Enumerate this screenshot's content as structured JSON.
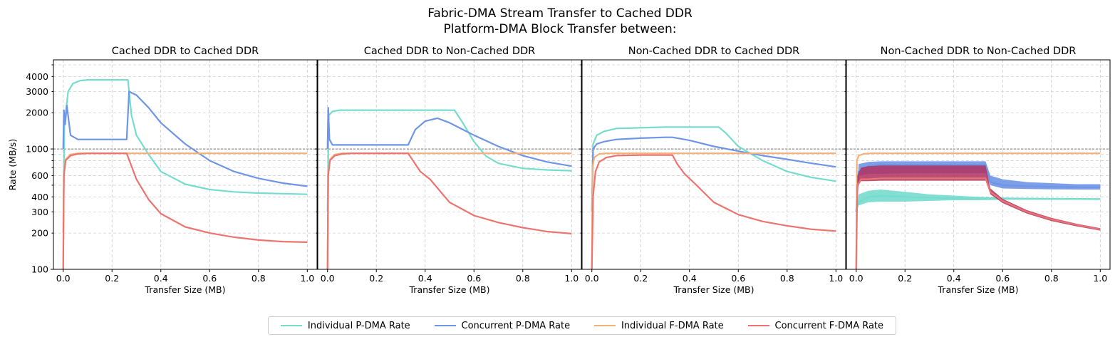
{
  "figure": {
    "title_line1": "Fabric-DMA Stream Transfer to Cached DDR",
    "title_line2": "Platform-DMA Block Transfer between:"
  },
  "legend": [
    {
      "label": "Individual P-DMA Rate",
      "color": "#76dccd"
    },
    {
      "label": "Concurrent P-DMA Rate",
      "color": "#6f95e6"
    },
    {
      "label": "Individual F-DMA Rate",
      "color": "#f5b07a"
    },
    {
      "label": "Concurrent F-DMA Rate",
      "color": "#ec7470"
    }
  ],
  "chart_data": [
    {
      "type": "line",
      "title": "Cached DDR to Cached DDR",
      "xlabel": "Transfer Size (MB)",
      "ylabel": "Rate (MB/s)",
      "yscale": "log",
      "xlim": [
        -0.04,
        1.04
      ],
      "ylim": [
        100,
        5500
      ],
      "xticks": [
        "0.0",
        "0.2",
        "0.4",
        "0.6",
        "0.8",
        "1.0"
      ],
      "yticks": [
        "100",
        "200",
        "300",
        "400",
        "600",
        "1000",
        "2000",
        "3000",
        "4000"
      ],
      "hline": 1000,
      "grid": true,
      "series": [
        {
          "name": "Individual P-DMA Rate",
          "x": [
            0.0,
            0.005,
            0.02,
            0.04,
            0.07,
            0.1,
            0.2,
            0.265,
            0.28,
            0.3,
            0.35,
            0.4,
            0.5,
            0.6,
            0.7,
            0.8,
            0.9,
            1.0
          ],
          "y": [
            200,
            1600,
            3000,
            3500,
            3700,
            3750,
            3750,
            3750,
            1900,
            1300,
            900,
            650,
            510,
            460,
            440,
            430,
            425,
            420
          ]
        },
        {
          "name": "Concurrent P-DMA Rate",
          "x": [
            0.0,
            0.003,
            0.008,
            0.015,
            0.03,
            0.06,
            0.1,
            0.2,
            0.26,
            0.27,
            0.3,
            0.35,
            0.4,
            0.5,
            0.6,
            0.7,
            0.8,
            0.9,
            1.0
          ],
          "y": [
            1000,
            2100,
            1600,
            2300,
            1300,
            1200,
            1200,
            1200,
            1200,
            3000,
            2800,
            2200,
            1650,
            1100,
            800,
            650,
            570,
            520,
            490
          ]
        },
        {
          "name": "Individual F-DMA Rate",
          "x": [
            0.0,
            0.003,
            0.01,
            0.03,
            0.06,
            0.1,
            0.5,
            1.0
          ],
          "y": [
            100,
            620,
            820,
            900,
            920,
            920,
            920,
            920
          ]
        },
        {
          "name": "Concurrent F-DMA Rate",
          "x": [
            0.0,
            0.003,
            0.01,
            0.03,
            0.06,
            0.1,
            0.2,
            0.26,
            0.3,
            0.35,
            0.4,
            0.5,
            0.6,
            0.7,
            0.8,
            0.9,
            1.0
          ],
          "y": [
            100,
            600,
            800,
            880,
            910,
            920,
            920,
            920,
            560,
            380,
            290,
            225,
            200,
            185,
            175,
            170,
            168
          ]
        }
      ]
    },
    {
      "type": "line",
      "title": "Cached DDR to Non-Cached DDR",
      "xlabel": "Transfer Size (MB)",
      "ylabel": "",
      "yscale": "log",
      "xlim": [
        -0.04,
        1.04
      ],
      "ylim": [
        100,
        5500
      ],
      "xticks": [
        "0.0",
        "0.2",
        "0.4",
        "0.6",
        "0.8",
        "1.0"
      ],
      "yticks": [],
      "hline": 1000,
      "grid": true,
      "series": [
        {
          "name": "Individual P-DMA Rate",
          "x": [
            0.0,
            0.005,
            0.02,
            0.05,
            0.1,
            0.3,
            0.52,
            0.55,
            0.6,
            0.65,
            0.7,
            0.8,
            0.9,
            1.0
          ],
          "y": [
            300,
            1900,
            2050,
            2100,
            2100,
            2100,
            2100,
            1700,
            1150,
            870,
            760,
            690,
            670,
            660
          ]
        },
        {
          "name": "Concurrent P-DMA Rate",
          "x": [
            0.0,
            0.003,
            0.008,
            0.02,
            0.1,
            0.2,
            0.33,
            0.36,
            0.4,
            0.45,
            0.5,
            0.6,
            0.7,
            0.8,
            0.9,
            1.0
          ],
          "y": [
            1000,
            2200,
            1200,
            1080,
            1080,
            1080,
            1080,
            1450,
            1700,
            1800,
            1650,
            1300,
            1050,
            880,
            780,
            720
          ]
        },
        {
          "name": "Individual F-DMA Rate",
          "x": [
            0.0,
            0.003,
            0.01,
            0.03,
            0.06,
            0.1,
            0.5,
            1.0
          ],
          "y": [
            100,
            620,
            820,
            900,
            920,
            920,
            920,
            920
          ]
        },
        {
          "name": "Concurrent F-DMA Rate",
          "x": [
            0.0,
            0.003,
            0.01,
            0.03,
            0.06,
            0.1,
            0.2,
            0.33,
            0.35,
            0.38,
            0.42,
            0.5,
            0.6,
            0.7,
            0.8,
            0.9,
            1.0
          ],
          "y": [
            100,
            600,
            800,
            880,
            910,
            920,
            920,
            920,
            800,
            650,
            560,
            360,
            280,
            245,
            222,
            206,
            198
          ]
        }
      ]
    },
    {
      "type": "line",
      "title": "Non-Cached DDR to Cached DDR",
      "xlabel": "Transfer Size (MB)",
      "ylabel": "",
      "yscale": "log",
      "xlim": [
        -0.04,
        1.04
      ],
      "ylim": [
        100,
        5500
      ],
      "xticks": [
        "0.0",
        "0.2",
        "0.4",
        "0.6",
        "0.8",
        "1.0"
      ],
      "yticks": [],
      "hline": 1000,
      "grid": true,
      "series": [
        {
          "name": "Individual P-DMA Rate",
          "x": [
            0.0,
            0.005,
            0.02,
            0.05,
            0.1,
            0.3,
            0.52,
            0.55,
            0.6,
            0.7,
            0.8,
            0.9,
            1.0
          ],
          "y": [
            300,
            1100,
            1300,
            1400,
            1480,
            1520,
            1520,
            1350,
            1050,
            800,
            650,
            580,
            540
          ]
        },
        {
          "name": "Concurrent P-DMA Rate",
          "x": [
            0.0,
            0.005,
            0.02,
            0.05,
            0.1,
            0.2,
            0.3,
            0.33,
            0.4,
            0.5,
            0.6,
            0.7,
            0.8,
            0.9,
            1.0
          ],
          "y": [
            300,
            1000,
            1100,
            1150,
            1200,
            1230,
            1250,
            1250,
            1180,
            1050,
            960,
            880,
            820,
            760,
            710
          ]
        },
        {
          "name": "Individual F-DMA Rate",
          "x": [
            0.0,
            0.003,
            0.01,
            0.03,
            0.06,
            0.1,
            0.5,
            1.0
          ],
          "y": [
            100,
            700,
            850,
            910,
            920,
            920,
            920,
            920
          ]
        },
        {
          "name": "Concurrent F-DMA Rate",
          "x": [
            0.0,
            0.005,
            0.015,
            0.03,
            0.06,
            0.1,
            0.2,
            0.33,
            0.35,
            0.38,
            0.42,
            0.5,
            0.6,
            0.7,
            0.8,
            0.9,
            1.0
          ],
          "y": [
            100,
            400,
            650,
            780,
            850,
            880,
            890,
            890,
            750,
            620,
            520,
            360,
            285,
            250,
            230,
            215,
            208
          ]
        }
      ]
    },
    {
      "type": "line",
      "title": "Non-Cached DDR to Non-Cached DDR",
      "xlabel": "Transfer Size (MB)",
      "ylabel": "",
      "yscale": "log",
      "xlim": [
        -0.04,
        1.04
      ],
      "ylim": [
        100,
        5500
      ],
      "xticks": [
        "0.0",
        "0.2",
        "0.4",
        "0.6",
        "0.8",
        "1.0"
      ],
      "yticks": [],
      "hline": 1000,
      "grid": true,
      "series": [
        {
          "name": "Individual P-DMA Rate",
          "x": [
            0.0,
            0.01,
            0.05,
            0.1,
            0.2,
            0.3,
            0.4,
            0.5,
            0.6,
            0.7,
            0.8,
            0.9,
            1.0
          ],
          "y": [
            300,
            360,
            400,
            410,
            400,
            395,
            390,
            390,
            388,
            386,
            385,
            384,
            383
          ],
          "y_low": [
            300,
            340,
            360,
            365,
            365,
            370,
            375,
            375,
            378,
            378,
            378,
            378,
            378
          ],
          "y_high": [
            300,
            420,
            450,
            460,
            440,
            420,
            410,
            400,
            395,
            393,
            392,
            391,
            390
          ]
        },
        {
          "name": "Concurrent P-DMA Rate",
          "x": [
            0.0,
            0.01,
            0.05,
            0.1,
            0.2,
            0.3,
            0.4,
            0.5,
            0.53,
            0.55,
            0.6,
            0.7,
            0.8,
            0.9,
            1.0
          ],
          "y": [
            300,
            650,
            720,
            740,
            740,
            740,
            740,
            740,
            740,
            530,
            500,
            490,
            485,
            482,
            480
          ],
          "y_low": [
            300,
            600,
            620,
            620,
            630,
            630,
            630,
            630,
            630,
            500,
            470,
            465,
            462,
            460,
            460
          ],
          "y_high": [
            300,
            750,
            780,
            790,
            790,
            790,
            790,
            790,
            790,
            600,
            560,
            530,
            520,
            510,
            510
          ]
        },
        {
          "name": "Individual F-DMA Rate",
          "x": [
            0.0,
            0.003,
            0.01,
            0.03,
            0.06,
            0.1,
            0.5,
            1.0
          ],
          "y": [
            100,
            800,
            880,
            910,
            920,
            920,
            920,
            920
          ]
        },
        {
          "name": "Concurrent F-DMA Rate",
          "x": [
            0.0,
            0.005,
            0.02,
            0.05,
            0.1,
            0.2,
            0.3,
            0.4,
            0.5,
            0.53,
            0.55,
            0.6,
            0.7,
            0.8,
            0.9,
            1.0
          ],
          "y": [
            100,
            500,
            560,
            560,
            570,
            570,
            570,
            570,
            570,
            570,
            440,
            370,
            300,
            260,
            235,
            215
          ],
          "y_low": [
            100,
            480,
            540,
            540,
            545,
            545,
            545,
            545,
            545,
            545,
            420,
            355,
            290,
            252,
            228,
            210
          ],
          "y_high": [
            100,
            600,
            700,
            720,
            730,
            730,
            730,
            730,
            730,
            730,
            470,
            385,
            310,
            268,
            240,
            220
          ]
        }
      ]
    }
  ]
}
